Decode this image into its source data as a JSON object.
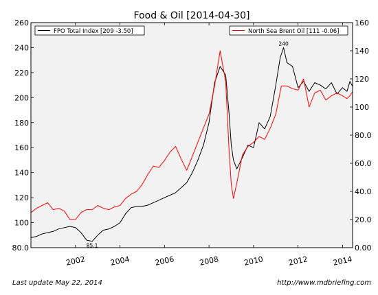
{
  "chart_data": {
    "type": "line",
    "title": "Food & Oil  [2014-04-30]",
    "x_ticks": [
      "2002",
      "2004",
      "2006",
      "2008",
      "2010",
      "2012",
      "2014"
    ],
    "xlim": [
      2000.0,
      2014.45
    ],
    "y_left": {
      "ylim": [
        80,
        260
      ],
      "ticks": [
        "80.0",
        "100",
        "120",
        "140",
        "160",
        "180",
        "200",
        "220",
        "240",
        "260"
      ]
    },
    "y_right": {
      "ylim": [
        0,
        160
      ],
      "ticks": [
        "0.00",
        "20.0",
        "40.0",
        "60.0",
        "80.0",
        "100",
        "120",
        "140",
        "160"
      ]
    },
    "grid": false,
    "series": [
      {
        "name": "FPO Total Index [209 -3.50]",
        "axis": "left",
        "color": "#000000",
        "x": [
          2000.0,
          2000.25,
          2000.5,
          2000.75,
          2001.0,
          2001.25,
          2001.5,
          2001.75,
          2002.0,
          2002.25,
          2002.5,
          2002.75,
          2003.0,
          2003.25,
          2003.5,
          2003.75,
          2004.0,
          2004.25,
          2004.5,
          2004.75,
          2005.0,
          2005.25,
          2005.5,
          2005.75,
          2006.0,
          2006.25,
          2006.5,
          2006.75,
          2007.0,
          2007.25,
          2007.5,
          2007.75,
          2008.0,
          2008.25,
          2008.5,
          2008.75,
          2008.9,
          2009.0,
          2009.1,
          2009.25,
          2009.5,
          2009.75,
          2010.0,
          2010.25,
          2010.5,
          2010.75,
          2011.0,
          2011.2,
          2011.35,
          2011.5,
          2011.75,
          2012.0,
          2012.25,
          2012.5,
          2012.75,
          2013.0,
          2013.25,
          2013.5,
          2013.75,
          2014.0,
          2014.2,
          2014.33,
          2014.45
        ],
        "values": [
          88,
          89,
          91,
          92,
          93,
          95,
          96,
          97,
          96,
          92,
          86,
          85.1,
          90,
          94,
          95,
          97,
          100,
          107,
          112,
          113,
          113,
          114,
          116,
          118,
          120,
          122,
          124,
          128,
          132,
          140,
          150,
          162,
          180,
          212,
          225,
          218,
          188,
          162,
          150,
          143,
          152,
          162,
          160,
          180,
          175,
          185,
          210,
          232,
          240,
          228,
          225,
          208,
          213,
          205,
          212,
          210,
          207,
          212,
          203,
          208,
          205,
          213,
          209
        ],
        "peak": {
          "x": 2011.35,
          "value": 240,
          "label": "240"
        },
        "trough": {
          "x": 2002.75,
          "value": 85.1,
          "label": "85.1"
        }
      },
      {
        "name": "North Sea Brent Oil [111 -0.06]",
        "axis": "right",
        "color": "#ff0000",
        "x": [
          2000.0,
          2000.25,
          2000.5,
          2000.75,
          2001.0,
          2001.25,
          2001.5,
          2001.75,
          2002.0,
          2002.25,
          2002.5,
          2002.75,
          2003.0,
          2003.25,
          2003.5,
          2003.75,
          2004.0,
          2004.25,
          2004.5,
          2004.75,
          2005.0,
          2005.25,
          2005.5,
          2005.75,
          2006.0,
          2006.25,
          2006.5,
          2006.75,
          2007.0,
          2007.25,
          2007.5,
          2007.75,
          2008.0,
          2008.25,
          2008.5,
          2008.75,
          2008.9,
          2009.0,
          2009.1,
          2009.25,
          2009.5,
          2009.75,
          2010.0,
          2010.25,
          2010.5,
          2010.75,
          2011.0,
          2011.25,
          2011.5,
          2011.75,
          2012.0,
          2012.25,
          2012.5,
          2012.75,
          2013.0,
          2013.25,
          2013.5,
          2013.75,
          2014.0,
          2014.2,
          2014.33,
          2014.45
        ],
        "values": [
          25,
          28,
          30,
          32,
          27,
          28,
          26,
          20,
          20,
          25,
          27,
          27,
          30,
          28,
          27,
          29,
          30,
          35,
          38,
          40,
          45,
          52,
          58,
          57,
          62,
          68,
          72,
          63,
          55,
          65,
          75,
          85,
          95,
          115,
          140,
          118,
          70,
          45,
          35,
          46,
          66,
          72,
          75,
          79,
          77,
          85,
          95,
          115,
          115,
          113,
          112,
          120,
          100,
          110,
          112,
          105,
          108,
          110,
          108,
          106,
          108,
          111
        ]
      }
    ]
  },
  "footer": {
    "left": "Last update May 22, 2014",
    "right": "http://www.mdbriefing.com"
  }
}
